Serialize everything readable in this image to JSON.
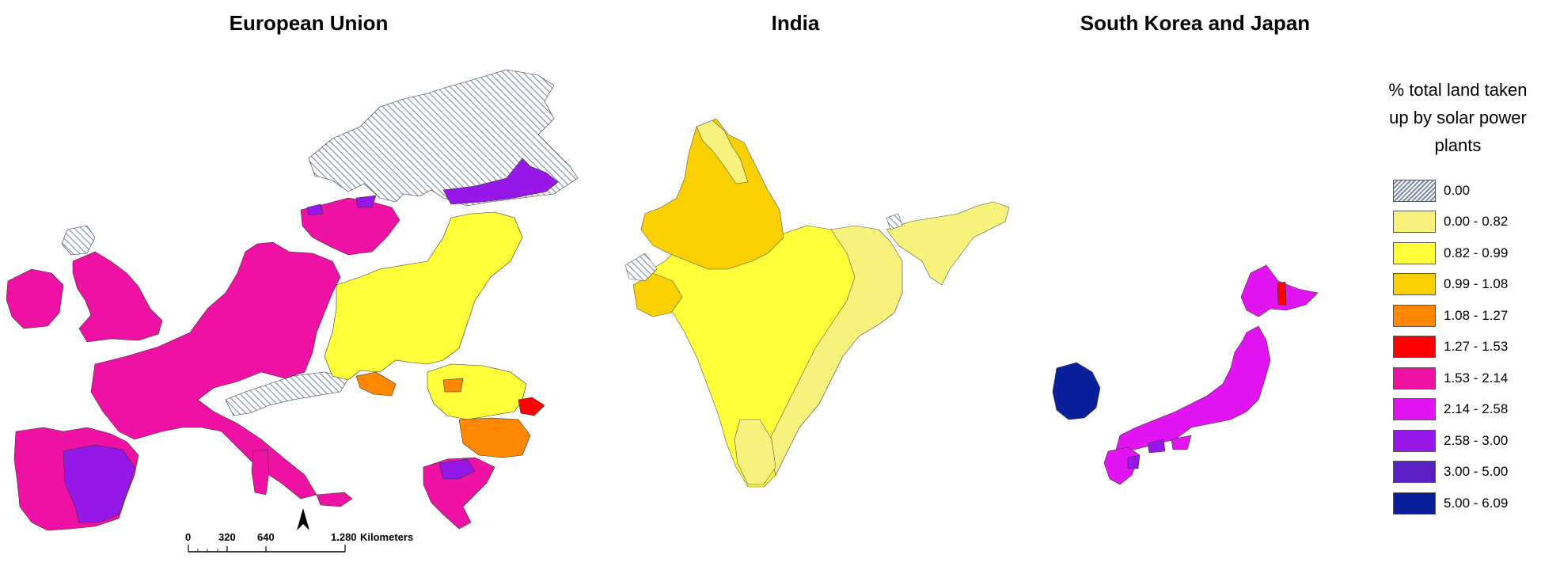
{
  "panels": {
    "eu": {
      "title": "European Union"
    },
    "india": {
      "title": "India"
    },
    "korea_japan": {
      "title": "South Korea and Japan"
    }
  },
  "legend": {
    "title_lines": [
      "% total land taken",
      "up by solar power",
      "plants"
    ],
    "classes": [
      {
        "label": "0.00",
        "color": "#d9dce6",
        "hatched": true
      },
      {
        "label": "0.00 - 0.82",
        "color": "#f7f27c"
      },
      {
        "label": "0.82 - 0.99",
        "color": "#ffff3a"
      },
      {
        "label": "0.99 - 1.08",
        "color": "#fad000"
      },
      {
        "label": "1.08 - 1.27",
        "color": "#ff8800"
      },
      {
        "label": "1.27 - 1.53",
        "color": "#ff0000"
      },
      {
        "label": "1.53 - 2.14",
        "color": "#ef11a3"
      },
      {
        "label": "2.14 - 2.58",
        "color": "#e314f2"
      },
      {
        "label": "2.58 - 3.00",
        "color": "#9618e8"
      },
      {
        "label": "3.00 - 5.00",
        "color": "#5a20c4"
      },
      {
        "label": "5.00 - 6.09",
        "color": "#0a1f9a"
      }
    ]
  },
  "scale_bar": {
    "ticks": [
      "0",
      "320",
      "640",
      "1.280"
    ],
    "unit": "Kilometers"
  }
}
